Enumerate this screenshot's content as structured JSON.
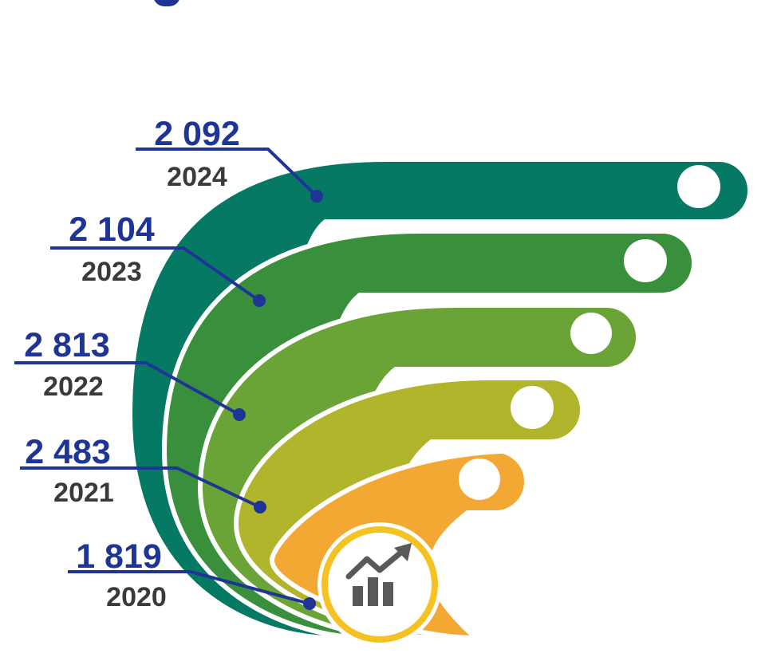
{
  "colors": {
    "value_text": "#1f3596",
    "year_text": "#3a3a3a",
    "leader_line": "#1f3596",
    "band_2024": "#067964",
    "band_2023": "#3a8f3d",
    "band_2022": "#6aa336",
    "band_2021": "#b0b52c",
    "band_2020": "#f4a834",
    "hub_ring": "#f5c224",
    "hub_icon": "#595959"
  },
  "hub_icon": "bar-chart-trend-up-icon",
  "chart_data": {
    "type": "bar",
    "categories": [
      "2024",
      "2023",
      "2022",
      "2021",
      "2020"
    ],
    "values": [
      2092,
      2104,
      2813,
      2483,
      1819
    ],
    "value_labels": [
      "2 092",
      "2 104",
      "2 813",
      "2 483",
      "1 819"
    ],
    "title": "",
    "xlabel": "",
    "ylabel": ""
  }
}
